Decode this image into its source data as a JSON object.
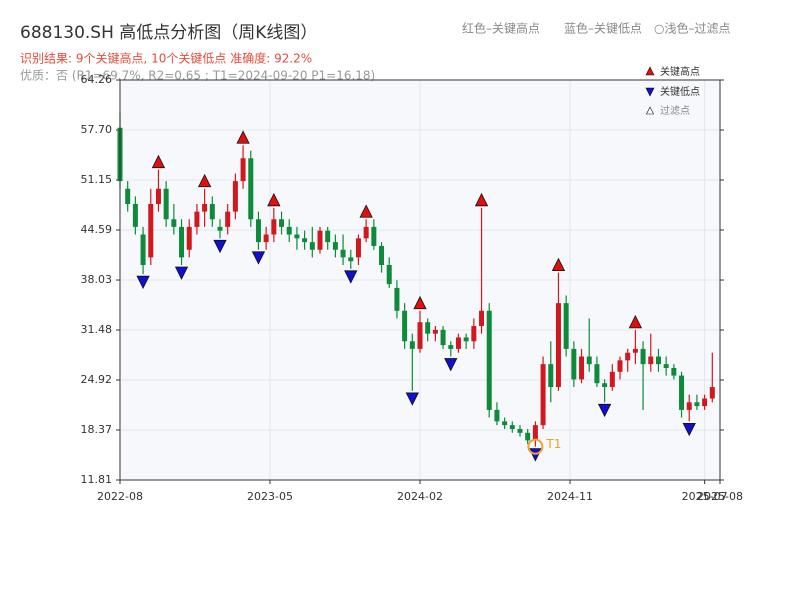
{
  "chart_data": {
    "type": "candlestick",
    "title": "688130.SH 高低点分析图（周K线图）",
    "legend_text": "红色–关键高点　　蓝色–关键低点　○浅色–过滤点",
    "subtitle": "识别结果: 9个关键高点, 10个关键低点  准确度: 92.2%",
    "quality_note": "优质：否  (R1=69.7%, R2=0.65 ; T1=2024-09-20 P1=16.18)",
    "up_color": "#d0191f",
    "down_color": "#0e8a3a",
    "x": [
      0,
      2,
      4,
      6,
      8,
      10,
      12,
      14,
      16,
      18,
      20,
      22,
      24,
      26,
      28,
      30,
      32,
      34,
      36,
      38,
      40,
      42,
      44,
      46,
      48,
      50,
      52,
      54,
      56,
      58,
      60,
      62,
      64,
      66,
      68,
      70,
      72,
      74,
      76,
      78,
      80,
      82,
      84,
      86,
      88,
      90,
      92,
      94,
      96,
      98,
      100,
      102,
      104,
      106,
      108,
      110,
      112,
      114,
      116,
      118,
      120,
      122,
      124,
      126,
      128,
      130,
      132,
      134,
      136,
      138,
      140,
      142,
      144,
      146,
      148,
      150,
      152,
      154
    ],
    "open": [
      58,
      50,
      48,
      44,
      41,
      48,
      50,
      46,
      45,
      42,
      45,
      47,
      48,
      45,
      45,
      47,
      51,
      54,
      46,
      43,
      44,
      46,
      45,
      44,
      43.5,
      43,
      42,
      44.5,
      43,
      42,
      41,
      41,
      43.5,
      45,
      42.5,
      40,
      37,
      34,
      30,
      29,
      32.5,
      31,
      31.5,
      29.5,
      29,
      30.5,
      30,
      32,
      34,
      21,
      19.5,
      19,
      18.5,
      18,
      17,
      19,
      27,
      24,
      35,
      29,
      25,
      28,
      27,
      24.5,
      24,
      26,
      27.5,
      28.5,
      29,
      27,
      28,
      27,
      26.5,
      25.5,
      21,
      22,
      21.5,
      22.5
    ],
    "high": [
      60,
      51,
      49,
      45,
      50,
      52.5,
      51,
      48,
      46,
      46,
      48,
      50,
      49,
      46,
      48,
      52,
      55.7,
      55,
      47,
      45,
      47.5,
      47,
      46,
      45,
      44.5,
      45,
      45,
      45,
      44,
      44,
      42,
      44,
      46,
      46,
      43,
      41,
      38,
      35,
      31,
      34,
      33,
      32,
      32,
      30,
      31,
      31,
      33,
      47.5,
      35,
      22,
      20,
      19.5,
      19,
      18.5,
      19.5,
      28,
      30,
      39,
      36,
      30,
      29,
      33,
      28,
      25,
      27,
      28,
      29,
      31.5,
      30,
      31,
      29,
      28,
      27,
      26,
      23,
      23,
      23,
      28.5
    ],
    "low": [
      50,
      47,
      44,
      38.8,
      40,
      47,
      45,
      44,
      40,
      41,
      44,
      45,
      45,
      43.5,
      44,
      46,
      50,
      45,
      42,
      42,
      43,
      44,
      43,
      42,
      42,
      41,
      41.5,
      42,
      41,
      40,
      39.5,
      40,
      43,
      42,
      39,
      37,
      33,
      29,
      23.5,
      28.5,
      30,
      30,
      29,
      28,
      28.5,
      29,
      29,
      31,
      20,
      19,
      18.5,
      18,
      17.5,
      16.5,
      16.18,
      18.5,
      22,
      23.5,
      28,
      24,
      24.5,
      26,
      24,
      22,
      23.5,
      25,
      26,
      27,
      21,
      26,
      26,
      25.5,
      25,
      20,
      19.5,
      21,
      21,
      22
    ],
    "close": [
      51,
      48,
      45,
      40,
      48,
      50,
      46,
      45,
      41,
      45,
      47,
      48,
      46,
      44.5,
      47,
      51,
      54,
      46,
      43,
      44,
      46,
      45,
      44,
      43.5,
      43,
      42,
      44.5,
      43,
      42,
      41,
      40.5,
      43.5,
      45,
      42.5,
      40,
      37.5,
      34,
      30,
      29,
      32.5,
      31,
      31.5,
      29.5,
      29,
      30.5,
      30,
      32,
      34,
      21,
      19.5,
      19,
      18.5,
      18,
      17,
      19,
      27,
      24,
      35,
      29,
      25,
      28,
      27,
      24.5,
      24,
      26,
      27.5,
      28.5,
      29,
      27,
      28,
      27,
      26.5,
      25.5,
      21,
      22,
      21.5,
      22.5,
      24
    ],
    "high_points": {
      "name": "关键高点",
      "color": "#e01010",
      "x": [
        10,
        22,
        32,
        40,
        64,
        78,
        94,
        114,
        134
      ],
      "values": [
        52.5,
        50,
        55.7,
        47.5,
        46,
        34,
        47.5,
        39,
        31.5
      ]
    },
    "low_points": {
      "name": "关键低点",
      "color": "#1010d0",
      "x": [
        6,
        16,
        26,
        36,
        60,
        76,
        86,
        108,
        126,
        148
      ],
      "values": [
        38.8,
        40,
        43.5,
        42,
        39.5,
        23.5,
        28,
        16.18,
        22,
        19.5
      ]
    },
    "filtered_name": "过滤点",
    "annotation": {
      "text": "T1",
      "x": 108,
      "y": 16.18,
      "color": "#f0a030"
    },
    "xlim": [
      0,
      156
    ],
    "xticks": [
      {
        "value": 0,
        "label": "2022-08"
      },
      {
        "value": 39,
        "label": "2023-05"
      },
      {
        "value": 78,
        "label": "2024-02"
      },
      {
        "value": 117,
        "label": "2024-11"
      },
      {
        "value": 152,
        "label": "2025-07"
      },
      {
        "value": 156,
        "label": "2025-08"
      }
    ],
    "ylim": [
      11.81,
      64.26
    ],
    "yticks": [
      {
        "value": 11.81,
        "label": "11.81"
      },
      {
        "value": 18.37,
        "label": "18.37"
      },
      {
        "value": 24.92,
        "label": "24.92"
      },
      {
        "value": 31.48,
        "label": "31.48"
      },
      {
        "value": 38.03,
        "label": "38.03"
      },
      {
        "value": 44.59,
        "label": "44.59"
      },
      {
        "value": 51.15,
        "label": "51.15"
      },
      {
        "value": 57.7,
        "label": "57.70"
      },
      {
        "value": 64.26,
        "label": "64.26"
      }
    ],
    "grid": true
  }
}
